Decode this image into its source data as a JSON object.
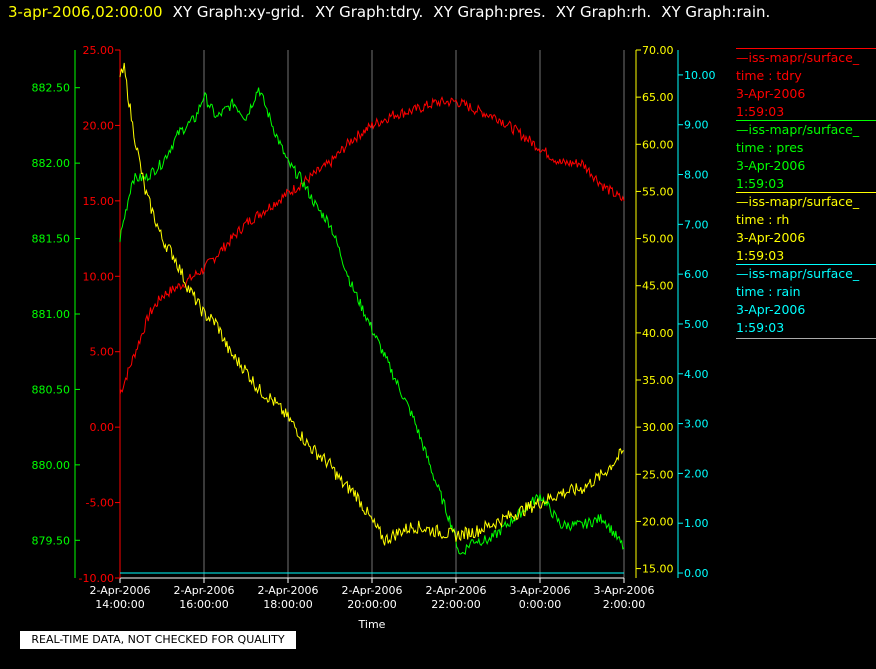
{
  "header": {
    "timestamp": "3-apr-2006,02:00:00",
    "graph_titles": [
      "XY Graph:xy-grid.",
      "XY Graph:tdry.",
      "XY Graph:pres.",
      "XY Graph:rh.",
      "XY Graph:rain."
    ]
  },
  "notice": "REAL-TIME DATA, NOT CHECKED FOR QUALITY",
  "colors": {
    "tdry": "#ff0000",
    "pres": "#00ff00",
    "rh": "#ffff00",
    "rain": "#00ffff",
    "grid": "#ffffff",
    "background": "#000000"
  },
  "legend": [
    {
      "source": "—iss-mapr/surface_",
      "var": "time : tdry",
      "date": "3-Apr-2006",
      "time": "1:59:03",
      "color": "#ff0000"
    },
    {
      "source": "—iss-mapr/surface_",
      "var": "time : pres",
      "date": "3-Apr-2006",
      "time": "1:59:03",
      "color": "#00ff00"
    },
    {
      "source": "—iss-mapr/surface_",
      "var": "time : rh",
      "date": "3-Apr-2006",
      "time": "1:59:03",
      "color": "#ffff00"
    },
    {
      "source": "—iss-mapr/surface_",
      "var": "time : rain",
      "date": "3-Apr-2006",
      "time": "1:59:03",
      "color": "#00ffff"
    }
  ],
  "chart_data": {
    "type": "line",
    "xlabel": "Time",
    "x_ticks": [
      {
        "date": "2-Apr-2006",
        "time": "14:00:00"
      },
      {
        "date": "2-Apr-2006",
        "time": "16:00:00"
      },
      {
        "date": "2-Apr-2006",
        "time": "18:00:00"
      },
      {
        "date": "2-Apr-2006",
        "time": "20:00:00"
      },
      {
        "date": "2-Apr-2006",
        "time": "22:00:00"
      },
      {
        "date": "3-Apr-2006",
        "time": "0:00:00"
      },
      {
        "date": "3-Apr-2006",
        "time": "2:00:00"
      }
    ],
    "x_range_hours": [
      14,
      26
    ],
    "grid": "vertical",
    "axes": {
      "tdry": {
        "range": [
          -10,
          25
        ],
        "ticks": [
          "25.00",
          "20.00",
          "15.00",
          "10.00",
          "5.00",
          "0.00",
          "-5.00",
          "-10.00"
        ]
      },
      "pres": {
        "range": [
          879.25,
          882.75
        ],
        "ticks": [
          "882.50",
          "882.00",
          "881.50",
          "881.00",
          "880.50",
          "880.00",
          "879.50"
        ]
      },
      "rh": {
        "range": [
          14,
          70
        ],
        "ticks": [
          "70.00",
          "65.00",
          "60.00",
          "55.00",
          "50.00",
          "45.00",
          "40.00",
          "35.00",
          "30.00",
          "25.00",
          "20.00",
          "15.00"
        ]
      },
      "rain": {
        "range": [
          -0.1,
          10.5
        ],
        "ticks": [
          "10.00",
          "9.00",
          "8.00",
          "7.00",
          "6.00",
          "5.00",
          "4.00",
          "3.00",
          "2.00",
          "1.00",
          "0.00"
        ]
      }
    },
    "series": [
      {
        "key": "tdry",
        "x_hours": [
          14.0,
          14.3,
          14.7,
          15.0,
          15.5,
          16.0,
          16.5,
          17.0,
          17.5,
          18.0,
          18.5,
          19.0,
          19.5,
          20.0,
          20.5,
          21.0,
          21.5,
          22.0,
          22.5,
          23.0,
          23.5,
          24.0,
          24.5,
          25.0,
          25.5,
          26.0
        ],
        "values": [
          2.2,
          4.5,
          7.5,
          8.7,
          9.5,
          10.5,
          12.0,
          13.5,
          14.5,
          15.5,
          16.5,
          17.5,
          19.0,
          20.0,
          20.7,
          21.0,
          21.5,
          21.6,
          21.0,
          20.5,
          19.5,
          18.5,
          17.5,
          17.5,
          16.0,
          15.0
        ]
      },
      {
        "key": "pres",
        "x_hours": [
          14.0,
          14.3,
          14.6,
          15.0,
          15.4,
          15.8,
          16.0,
          16.3,
          16.7,
          17.0,
          17.3,
          17.7,
          18.0,
          18.3,
          18.7,
          19.0,
          19.5,
          20.0,
          20.5,
          21.0,
          21.5,
          21.9,
          22.1,
          22.4,
          22.8,
          23.2,
          23.6,
          24.0,
          24.5,
          25.0,
          25.5,
          26.0
        ],
        "values": [
          881.5,
          881.9,
          881.9,
          882.0,
          882.2,
          882.3,
          882.45,
          882.3,
          882.4,
          882.3,
          882.5,
          882.2,
          882.0,
          881.9,
          881.7,
          881.6,
          881.2,
          880.9,
          880.6,
          880.3,
          879.9,
          879.6,
          879.4,
          879.5,
          879.5,
          879.6,
          879.7,
          879.8,
          879.6,
          879.6,
          879.65,
          879.45
        ]
      },
      {
        "key": "rh",
        "x_hours": [
          14.0,
          14.1,
          14.3,
          14.6,
          15.0,
          15.3,
          15.6,
          16.0,
          16.3,
          16.6,
          17.0,
          17.3,
          17.6,
          18.0,
          18.5,
          19.0,
          19.3,
          19.6,
          20.0,
          20.3,
          20.7,
          21.0,
          21.5,
          22.0,
          22.5,
          23.0,
          23.5,
          24.0,
          24.5,
          25.0,
          25.5,
          26.0
        ],
        "values": [
          67,
          68,
          62,
          55,
          50,
          48,
          45,
          42,
          41,
          38,
          36,
          34,
          33,
          31,
          28,
          26,
          24,
          23,
          20,
          18,
          19,
          19.5,
          19,
          18.5,
          19,
          20,
          21,
          22,
          23,
          23.5,
          25,
          27.5
        ]
      },
      {
        "key": "rain",
        "x_hours": [
          14.0,
          26.0
        ],
        "values": [
          0.0,
          0.0
        ]
      }
    ]
  }
}
